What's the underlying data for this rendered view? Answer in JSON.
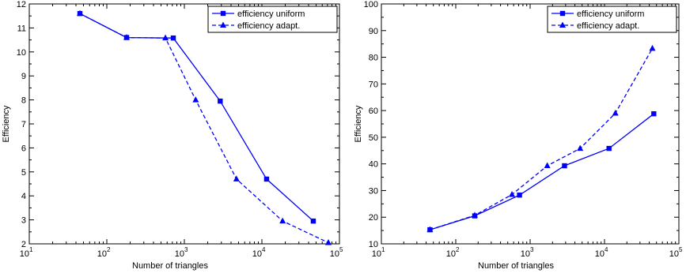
{
  "chart_data": [
    {
      "type": "line",
      "xscale": "log",
      "xlim": [
        10,
        100000
      ],
      "ylim": [
        2,
        12
      ],
      "xlabel": "Number of triangles",
      "ylabel": "Efficiency",
      "xticks": [
        {
          "base": "10",
          "exp": "1",
          "value": 10
        },
        {
          "base": "10",
          "exp": "2",
          "value": 100
        },
        {
          "base": "10",
          "exp": "3",
          "value": 1000
        },
        {
          "base": "10",
          "exp": "4",
          "value": 10000
        },
        {
          "base": "10",
          "exp": "5",
          "value": 100000
        }
      ],
      "yticks": [
        "2",
        "3",
        "4",
        "5",
        "6",
        "7",
        "8",
        "9",
        "10",
        "11",
        "12"
      ],
      "grid": false,
      "legend_position": "top-right",
      "color": "#0000ff",
      "series": [
        {
          "name": "efficiency uniform",
          "marker": "square",
          "line": "solid",
          "x": [
            45,
            180,
            720,
            2900,
            11500,
            46000
          ],
          "y": [
            11.6,
            10.6,
            10.58,
            7.95,
            4.7,
            2.95
          ]
        },
        {
          "name": "efficiency adapt.",
          "marker": "triangle",
          "line": "dashed",
          "x": [
            45,
            180,
            570,
            1400,
            4700,
            18500,
            72000
          ],
          "y": [
            11.6,
            10.6,
            10.58,
            8.0,
            4.7,
            2.95,
            2.05
          ]
        }
      ]
    },
    {
      "type": "line",
      "xscale": "log",
      "xlim": [
        10,
        100000
      ],
      "ylim": [
        10,
        100
      ],
      "xlabel": "Number of triangles",
      "ylabel": "Efficiency",
      "xticks": [
        {
          "base": "10",
          "exp": "1",
          "value": 10
        },
        {
          "base": "10",
          "exp": "2",
          "value": 100
        },
        {
          "base": "10",
          "exp": "3",
          "value": 1000
        },
        {
          "base": "10",
          "exp": "4",
          "value": 10000
        },
        {
          "base": "10",
          "exp": "5",
          "value": 100000
        }
      ],
      "yticks": [
        "10",
        "20",
        "30",
        "40",
        "50",
        "60",
        "70",
        "80",
        "90",
        "100"
      ],
      "grid": false,
      "legend_position": "top-right",
      "color": "#0000ff",
      "series": [
        {
          "name": "efficiency uniform",
          "marker": "square",
          "line": "solid",
          "x": [
            45,
            180,
            720,
            2900,
            11500,
            46000
          ],
          "y": [
            15.3,
            20.5,
            28.3,
            39.3,
            45.8,
            58.8
          ]
        },
        {
          "name": "efficiency adapt.",
          "marker": "triangle",
          "line": "dashed",
          "x": [
            45,
            180,
            570,
            1700,
            4700,
            14000,
            44000
          ],
          "y": [
            15.3,
            20.7,
            28.5,
            39.3,
            45.8,
            59.0,
            83.3
          ]
        }
      ]
    }
  ]
}
